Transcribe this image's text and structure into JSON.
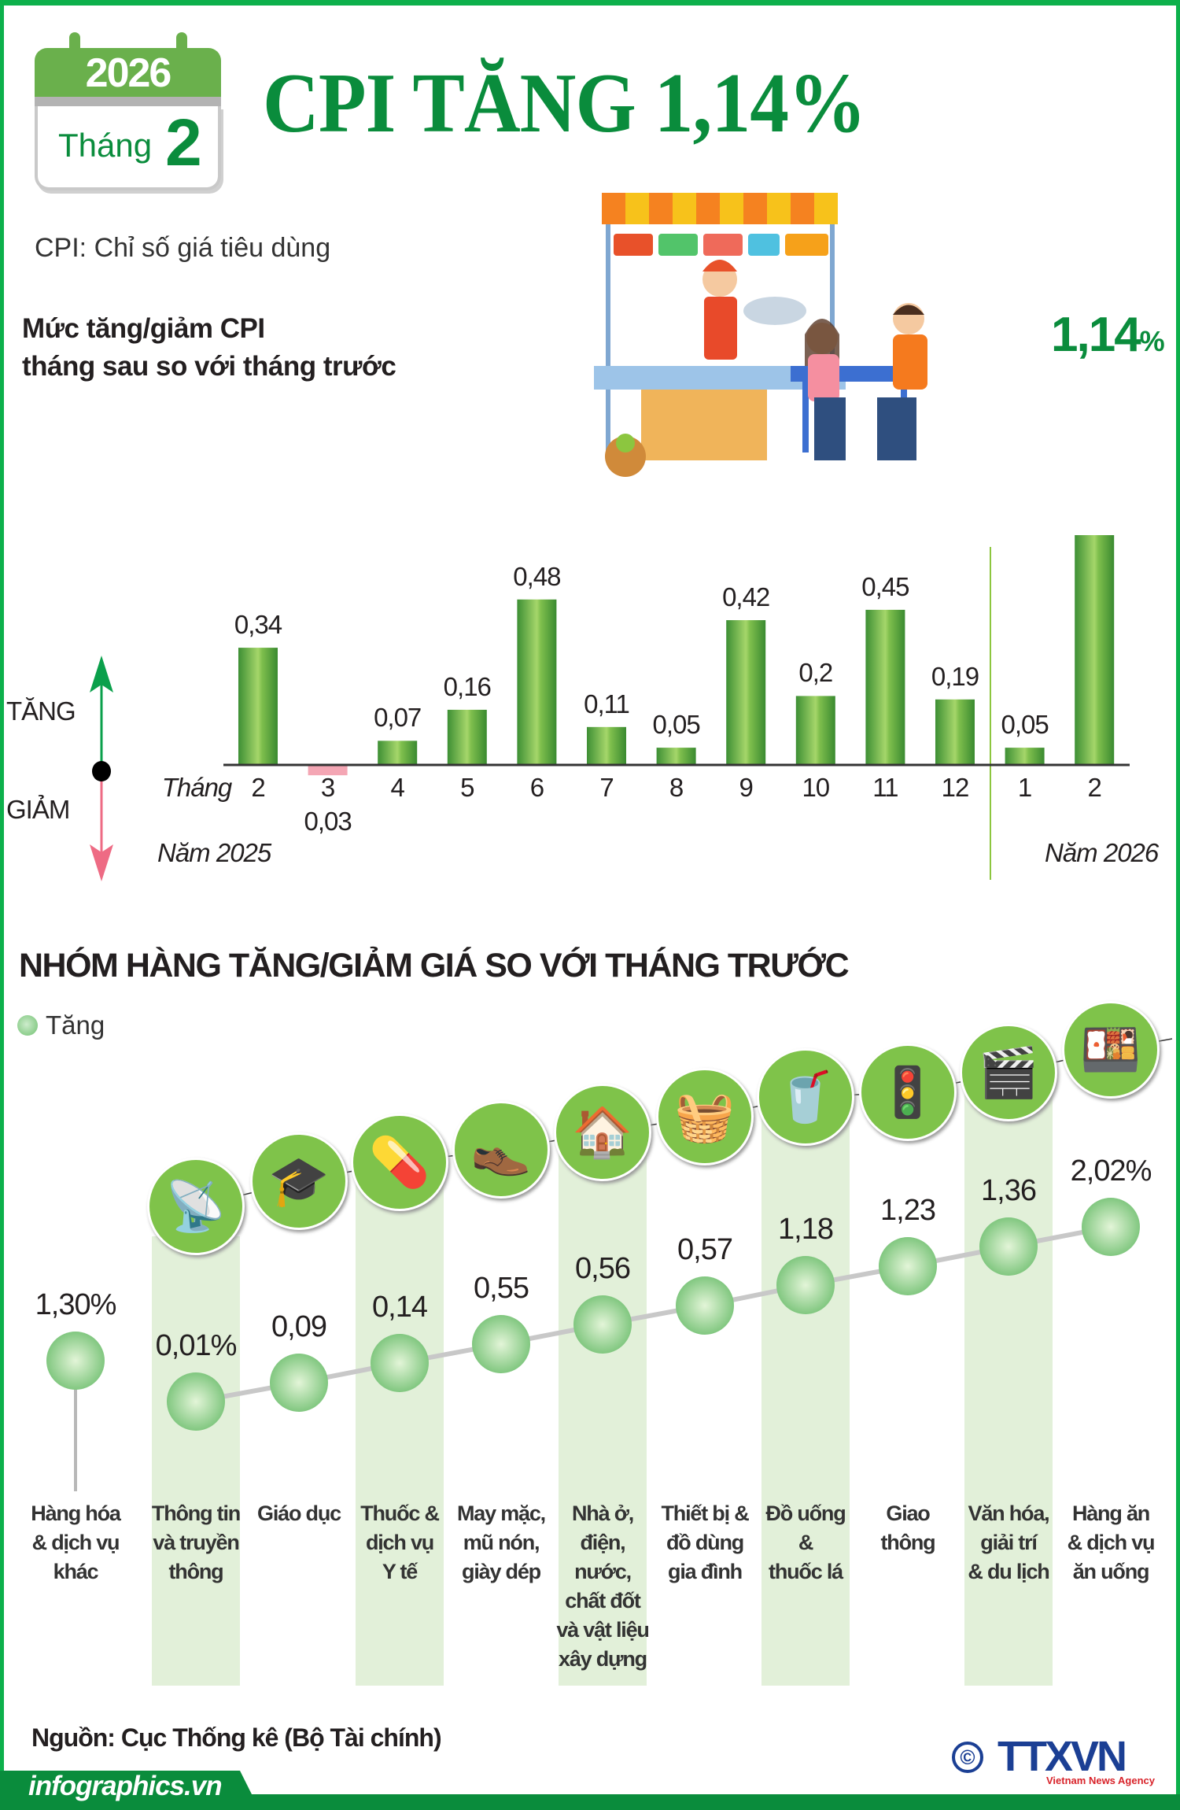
{
  "header": {
    "calendar_year": "2026",
    "calendar_month_label": "Tháng",
    "calendar_month": "2",
    "title": "CPI TĂNG 1,14%",
    "cpi_definition": "CPI: Chỉ số giá tiêu dùng"
  },
  "chart_section": {
    "subtitle_line1": "Mức tăng/giảm CPI",
    "subtitle_line2": "tháng sau so với tháng trước",
    "highlight_value": "1,14",
    "highlight_unit": "%",
    "up_label": "TĂNG",
    "down_label": "GIẢM",
    "month_prefix": "Tháng",
    "year1_label": "Năm 2025",
    "year2_label": "Năm 2026"
  },
  "chart_data": [
    {
      "type": "bar",
      "title": "Mức tăng/giảm CPI tháng sau so với tháng trước",
      "categories": [
        "2",
        "3",
        "4",
        "5",
        "6",
        "7",
        "8",
        "9",
        "10",
        "11",
        "12",
        "1",
        "2"
      ],
      "years": [
        "2025",
        "2025",
        "2025",
        "2025",
        "2025",
        "2025",
        "2025",
        "2025",
        "2025",
        "2025",
        "2025",
        "2026",
        "2026"
      ],
      "values": [
        0.34,
        -0.03,
        0.07,
        0.16,
        0.48,
        0.11,
        0.05,
        0.42,
        0.2,
        0.45,
        0.19,
        0.05,
        1.14
      ],
      "value_labels": [
        "0,34",
        "0,03",
        "0,07",
        "0,16",
        "0,48",
        "0,11",
        "0,05",
        "0,42",
        "0,2",
        "0,45",
        "0,19",
        "0,05",
        ""
      ],
      "unit": "%",
      "colors": {
        "positive": "#5aa83c",
        "negative": "#f4a6b4"
      },
      "grid": false
    },
    {
      "type": "line",
      "title": "NHÓM HÀNG TĂNG/GIẢM GIÁ SO VỚI THÁNG TRƯỚC",
      "legend": [
        {
          "name": "Tăng",
          "color": "#7fcf7f"
        }
      ],
      "legend_position": "top-left",
      "categories": [
        "Hàng hóa & dịch vụ khác",
        "Thông tin và truyền thông",
        "Giáo dục",
        "Thuốc & dịch vụ Y tế",
        "May mặc, mũ nón, giày dép",
        "Nhà ở, điện, nước, chất đốt và vật liệu xây dựng",
        "Thiết bị & đồ dùng gia đình",
        "Đồ uống & thuốc lá",
        "Giao thông",
        "Văn hóa, giải trí & du lịch",
        "Hàng ăn & dịch vụ ăn uống"
      ],
      "category_lines": [
        [
          "Hàng hóa",
          "& dịch vụ",
          "khác"
        ],
        [
          "Thông tin",
          "và truyền",
          "thông"
        ],
        [
          "Giáo dục"
        ],
        [
          "Thuốc &",
          "dịch vụ",
          "Y tế"
        ],
        [
          "May mặc,",
          "mũ nón,",
          "giày dép"
        ],
        [
          "Nhà ở,",
          "điện,",
          "nước,",
          "chất đốt",
          "và vật liệu",
          "xây dựng"
        ],
        [
          "Thiết bị &",
          "đồ dùng",
          "gia đình"
        ],
        [
          "Đồ uống",
          "&",
          "thuốc lá"
        ],
        [
          "Giao",
          "thông"
        ],
        [
          "Văn hóa,",
          "giải trí",
          "& du lịch"
        ],
        [
          "Hàng ăn",
          "& dịch vụ",
          "ăn uống"
        ]
      ],
      "values": [
        1.3,
        0.01,
        0.09,
        0.14,
        0.55,
        0.56,
        0.57,
        1.18,
        1.23,
        1.36,
        2.02
      ],
      "value_labels": [
        "1,30%",
        "0,01%",
        "0,09",
        "0,14",
        "0,55",
        "0,56",
        "0,57",
        "1,18",
        "1,23",
        "1,36",
        "2,02%"
      ],
      "icons": [
        "",
        "radio-tower-icon",
        "graduation-cap-icon",
        "pills-icon",
        "clothing-shoes-icon",
        "house-utilities-icon",
        "washing-machine-icon",
        "drink-cigarettes-icon",
        "traffic-light-icon",
        "cinema-icon",
        "food-plate-icon"
      ]
    }
  ],
  "footer": {
    "source": "Nguồn: Cục Thống kê (Bộ Tài chính)",
    "site": "infographics.vn",
    "logo_text": "TTXVN",
    "logo_sub": "Vietnam News Agency",
    "copyright": "©"
  },
  "colors": {
    "brand_green": "#0a8c3c",
    "border_green": "#0db04b"
  }
}
